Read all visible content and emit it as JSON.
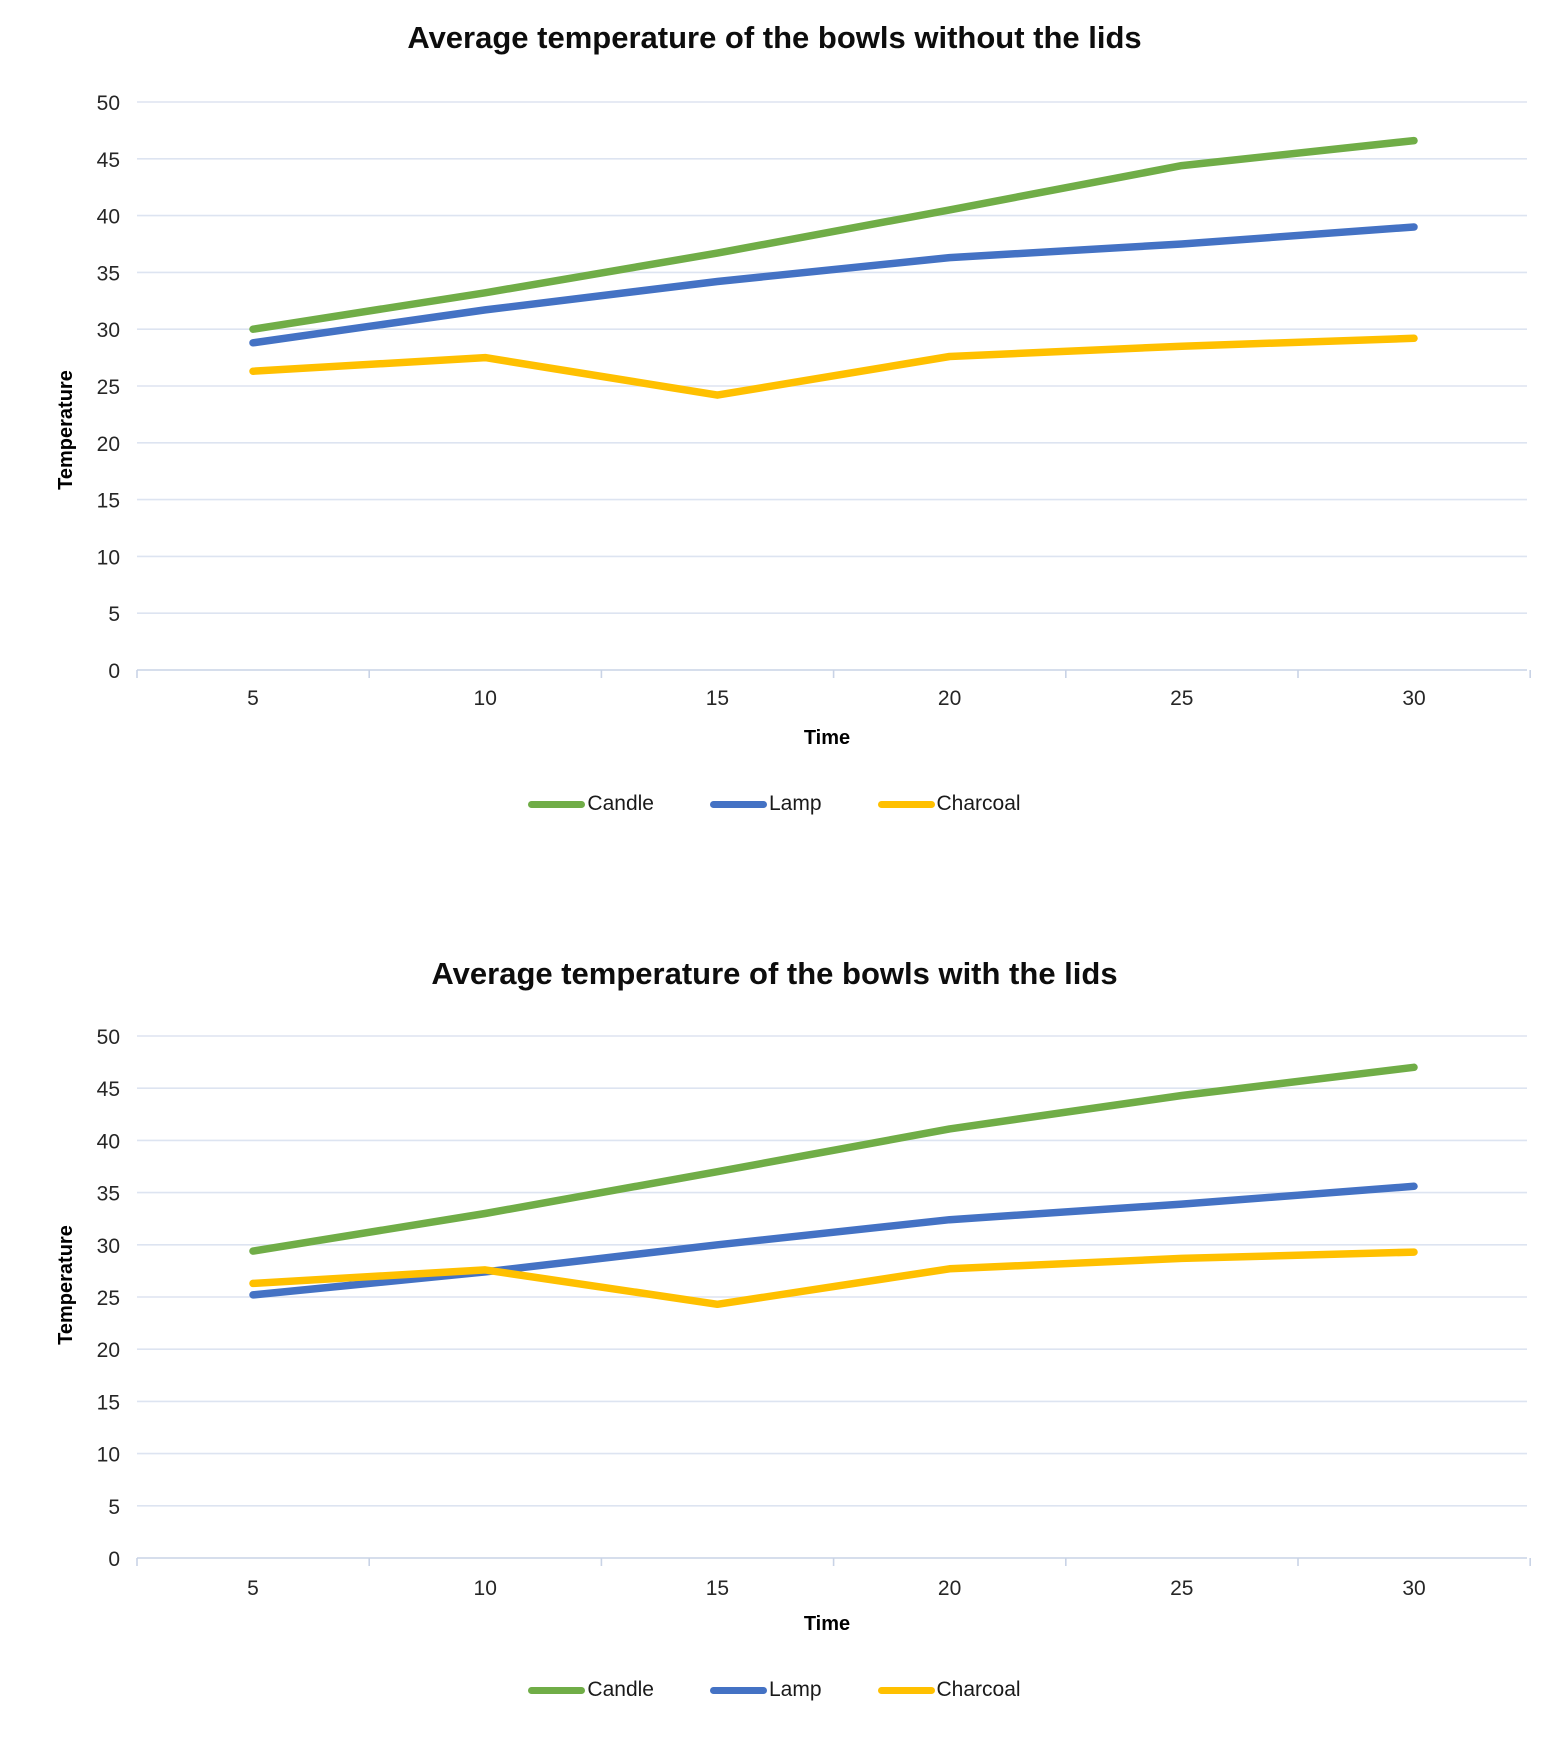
{
  "page_background": "#ffffff",
  "grid_color": "#dde4f1",
  "axis_color": "#c9d3e6",
  "chart_data": [
    {
      "type": "line",
      "title": "Average temperature of the bowls without the lids",
      "xlabel": "Time",
      "ylabel": "Temperature",
      "x": [
        5,
        10,
        15,
        20,
        25,
        30
      ],
      "ylim": [
        0,
        50
      ],
      "ytick_step": 5,
      "grid": "horizontal",
      "legend_position": "bottom",
      "series": [
        {
          "name": "Candle",
          "color": "#70AD47",
          "values": [
            30.0,
            33.2,
            36.7,
            40.5,
            44.4,
            46.6
          ]
        },
        {
          "name": "Lamp",
          "color": "#4472C4",
          "values": [
            28.8,
            31.7,
            34.2,
            36.3,
            37.5,
            39.0
          ]
        },
        {
          "name": "Charcoal",
          "color": "#FFC000",
          "values": [
            26.3,
            27.5,
            24.2,
            27.6,
            28.5,
            29.2
          ]
        }
      ]
    },
    {
      "type": "line",
      "title": "Average temperature of the bowls with the lids",
      "xlabel": "Time",
      "ylabel": "Temperature",
      "x": [
        5,
        10,
        15,
        20,
        25,
        30
      ],
      "ylim": [
        0,
        50
      ],
      "ytick_step": 5,
      "grid": "horizontal",
      "legend_position": "bottom",
      "series": [
        {
          "name": "Candle",
          "color": "#70AD47",
          "values": [
            29.4,
            33.0,
            37.0,
            41.1,
            44.3,
            47.0
          ]
        },
        {
          "name": "Lamp",
          "color": "#4472C4",
          "values": [
            25.2,
            27.4,
            30.0,
            32.4,
            33.9,
            35.6
          ]
        },
        {
          "name": "Charcoal",
          "color": "#FFC000",
          "values": [
            26.3,
            27.6,
            24.3,
            27.7,
            28.7,
            29.3
          ]
        }
      ]
    }
  ]
}
